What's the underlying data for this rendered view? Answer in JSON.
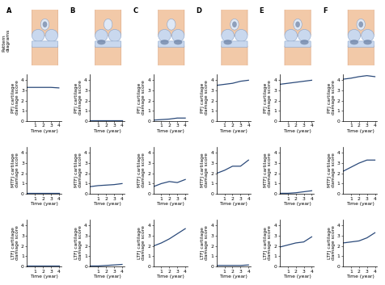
{
  "panels": [
    "A",
    "B",
    "C",
    "D",
    "E",
    "F"
  ],
  "pattern_label": "Pattern\ndiagrams",
  "chart_data": [
    {
      "type": "line",
      "y_label": "PFJ cartilage\ndamage score",
      "x_label": "Time (year)",
      "x": [
        0,
        1,
        2,
        3,
        4
      ],
      "values": [
        3.3,
        3.3,
        3.3,
        3.3,
        3.25
      ],
      "xlim": [
        0,
        4.3
      ],
      "ylim": [
        0,
        4.6
      ],
      "xticks": [
        1,
        2,
        3,
        4
      ],
      "yticks": [
        0,
        1,
        2,
        3,
        4
      ],
      "color": "#2b4a7a"
    },
    {
      "type": "line",
      "y_label": "PFJ cartilage\ndamage score",
      "x_label": "Time (year)",
      "x": [
        0,
        1,
        2,
        3,
        4
      ],
      "values": [
        0.05,
        0.05,
        0.05,
        0.05,
        0.05
      ],
      "xlim": [
        0,
        4.3
      ],
      "ylim": [
        0,
        4.6
      ],
      "xticks": [
        1,
        2,
        3,
        4
      ],
      "yticks": [
        0,
        1,
        2,
        3,
        4
      ],
      "color": "#2b4a7a"
    },
    {
      "type": "line",
      "y_label": "PFJ cartilage\ndamage score",
      "x_label": "Time (year)",
      "x": [
        0,
        1,
        2,
        3,
        4
      ],
      "values": [
        0.1,
        0.15,
        0.2,
        0.3,
        0.3
      ],
      "xlim": [
        0,
        4.3
      ],
      "ylim": [
        0,
        4.6
      ],
      "xticks": [
        1,
        2,
        3,
        4
      ],
      "yticks": [
        0,
        1,
        2,
        3,
        4
      ],
      "color": "#2b4a7a"
    },
    {
      "type": "line",
      "y_label": "PFJ cartilage\ndamage score",
      "x_label": "Time (year)",
      "x": [
        0,
        1,
        2,
        3,
        4
      ],
      "values": [
        3.5,
        3.6,
        3.7,
        3.9,
        4.0
      ],
      "xlim": [
        0,
        4.3
      ],
      "ylim": [
        0,
        4.6
      ],
      "xticks": [
        1,
        2,
        3,
        4
      ],
      "yticks": [
        0,
        1,
        2,
        3,
        4
      ],
      "color": "#2b4a7a"
    },
    {
      "type": "line",
      "y_label": "PFJ cartilage\ndamage score",
      "x_label": "Time (year)",
      "x": [
        0,
        1,
        2,
        3,
        4
      ],
      "values": [
        3.6,
        3.7,
        3.8,
        3.9,
        4.0
      ],
      "xlim": [
        0,
        4.3
      ],
      "ylim": [
        0,
        4.6
      ],
      "xticks": [
        1,
        2,
        3,
        4
      ],
      "yticks": [
        0,
        1,
        2,
        3,
        4
      ],
      "color": "#2b4a7a"
    },
    {
      "type": "line",
      "y_label": "PFJ cartilage\ndamage score",
      "x_label": "Time (year)",
      "x": [
        0,
        1,
        2,
        3,
        4
      ],
      "values": [
        4.1,
        4.2,
        4.35,
        4.45,
        4.35
      ],
      "xlim": [
        0,
        4.3
      ],
      "ylim": [
        0,
        4.6
      ],
      "xticks": [
        1,
        2,
        3,
        4
      ],
      "yticks": [
        0,
        1,
        2,
        3,
        4
      ],
      "color": "#2b4a7a"
    },
    {
      "type": "line",
      "y_label": "MTFJ cartilage\ndamage score",
      "x_label": "Time (year)",
      "x": [
        0,
        1,
        2,
        3,
        4
      ],
      "values": [
        0.05,
        0.05,
        0.05,
        0.05,
        0.05
      ],
      "xlim": [
        0,
        4.3
      ],
      "ylim": [
        0,
        4.6
      ],
      "xticks": [
        1,
        2,
        3,
        4
      ],
      "yticks": [
        0,
        1,
        2,
        3,
        4
      ],
      "color": "#2b4a7a"
    },
    {
      "type": "line",
      "y_label": "MTFJ cartilage\ndamage score",
      "x_label": "Time (year)",
      "x": [
        0,
        1,
        2,
        3,
        4
      ],
      "values": [
        0.7,
        0.8,
        0.85,
        0.9,
        1.0
      ],
      "xlim": [
        0,
        4.3
      ],
      "ylim": [
        0,
        4.6
      ],
      "xticks": [
        1,
        2,
        3,
        4
      ],
      "yticks": [
        0,
        1,
        2,
        3,
        4
      ],
      "color": "#2b4a7a"
    },
    {
      "type": "line",
      "y_label": "MTFJ cartilage\ndamage score",
      "x_label": "Time (year)",
      "x": [
        0,
        1,
        2,
        3,
        4
      ],
      "values": [
        0.7,
        1.0,
        1.2,
        1.1,
        1.4
      ],
      "xlim": [
        0,
        4.3
      ],
      "ylim": [
        0,
        4.6
      ],
      "xticks": [
        1,
        2,
        3,
        4
      ],
      "yticks": [
        0,
        1,
        2,
        3,
        4
      ],
      "color": "#2b4a7a"
    },
    {
      "type": "line",
      "y_label": "MTFJ cartilage\ndamage score",
      "x_label": "Time (year)",
      "x": [
        0,
        1,
        2,
        3,
        4
      ],
      "values": [
        2.0,
        2.3,
        2.7,
        2.7,
        3.3
      ],
      "xlim": [
        0,
        4.3
      ],
      "ylim": [
        0,
        4.6
      ],
      "xticks": [
        1,
        2,
        3,
        4
      ],
      "yticks": [
        0,
        1,
        2,
        3,
        4
      ],
      "color": "#2b4a7a"
    },
    {
      "type": "line",
      "y_label": "MTFJ cartilage\ndamage score",
      "x_label": "Time (year)",
      "x": [
        0,
        1,
        2,
        3,
        4
      ],
      "values": [
        0.05,
        0.05,
        0.1,
        0.2,
        0.3
      ],
      "xlim": [
        0,
        4.3
      ],
      "ylim": [
        0,
        4.6
      ],
      "xticks": [
        1,
        2,
        3,
        4
      ],
      "yticks": [
        0,
        1,
        2,
        3,
        4
      ],
      "color": "#2b4a7a"
    },
    {
      "type": "line",
      "y_label": "MTFJ cartilage\ndamage score",
      "x_label": "Time (year)",
      "x": [
        0,
        1,
        2,
        3,
        4
      ],
      "values": [
        2.2,
        2.6,
        3.0,
        3.3,
        3.3
      ],
      "xlim": [
        0,
        4.3
      ],
      "ylim": [
        0,
        4.6
      ],
      "xticks": [
        1,
        2,
        3,
        4
      ],
      "yticks": [
        0,
        1,
        2,
        3,
        4
      ],
      "color": "#2b4a7a"
    },
    {
      "type": "line",
      "y_label": "LTFJ cartilage\ndamage score",
      "x_label": "Time (year)",
      "x": [
        0,
        1,
        2,
        3,
        4
      ],
      "values": [
        0.05,
        0.05,
        0.05,
        0.05,
        0.05
      ],
      "xlim": [
        0,
        4.3
      ],
      "ylim": [
        0,
        4.6
      ],
      "xticks": [
        1,
        2,
        3,
        4
      ],
      "yticks": [
        0,
        1,
        2,
        3,
        4
      ],
      "color": "#2b4a7a"
    },
    {
      "type": "line",
      "y_label": "LTFJ cartilage\ndamage score",
      "x_label": "Time (year)",
      "x": [
        0,
        1,
        2,
        3,
        4
      ],
      "values": [
        0.05,
        0.05,
        0.1,
        0.15,
        0.2
      ],
      "xlim": [
        0,
        4.3
      ],
      "ylim": [
        0,
        4.6
      ],
      "xticks": [
        1,
        2,
        3,
        4
      ],
      "yticks": [
        0,
        1,
        2,
        3,
        4
      ],
      "color": "#2b4a7a"
    },
    {
      "type": "line",
      "y_label": "LTFJ cartilage\ndamage score",
      "x_label": "Time (year)",
      "x": [
        0,
        1,
        2,
        3,
        4
      ],
      "values": [
        2.0,
        2.3,
        2.7,
        3.2,
        3.7
      ],
      "xlim": [
        0,
        4.3
      ],
      "ylim": [
        0,
        4.6
      ],
      "xticks": [
        1,
        2,
        3,
        4
      ],
      "yticks": [
        0,
        1,
        2,
        3,
        4
      ],
      "color": "#2b4a7a"
    },
    {
      "type": "line",
      "y_label": "LTFJ cartilage\ndamage score",
      "x_label": "Time (year)",
      "x": [
        0,
        1,
        2,
        3,
        4
      ],
      "values": [
        0.1,
        0.1,
        0.1,
        0.1,
        0.15
      ],
      "xlim": [
        0,
        4.3
      ],
      "ylim": [
        0,
        4.6
      ],
      "xticks": [
        1,
        2,
        3,
        4
      ],
      "yticks": [
        0,
        1,
        2,
        3,
        4
      ],
      "color": "#2b4a7a"
    },
    {
      "type": "line",
      "y_label": "LTFJ cartilage\ndamage score",
      "x_label": "Time (year)",
      "x": [
        0,
        1,
        2,
        3,
        4
      ],
      "values": [
        1.9,
        2.1,
        2.3,
        2.4,
        2.9
      ],
      "xlim": [
        0,
        4.3
      ],
      "ylim": [
        0,
        4.6
      ],
      "xticks": [
        1,
        2,
        3,
        4
      ],
      "yticks": [
        0,
        1,
        2,
        3,
        4
      ],
      "color": "#2b4a7a"
    },
    {
      "type": "line",
      "y_label": "LTFJ cartilage\ndamage score",
      "x_label": "Time (year)",
      "x": [
        0,
        1,
        2,
        3,
        4
      ],
      "values": [
        2.3,
        2.4,
        2.5,
        2.8,
        3.3
      ],
      "xlim": [
        0,
        4.3
      ],
      "ylim": [
        0,
        4.6
      ],
      "xticks": [
        1,
        2,
        3,
        4
      ],
      "yticks": [
        0,
        1,
        2,
        3,
        4
      ],
      "color": "#2b4a7a"
    }
  ]
}
